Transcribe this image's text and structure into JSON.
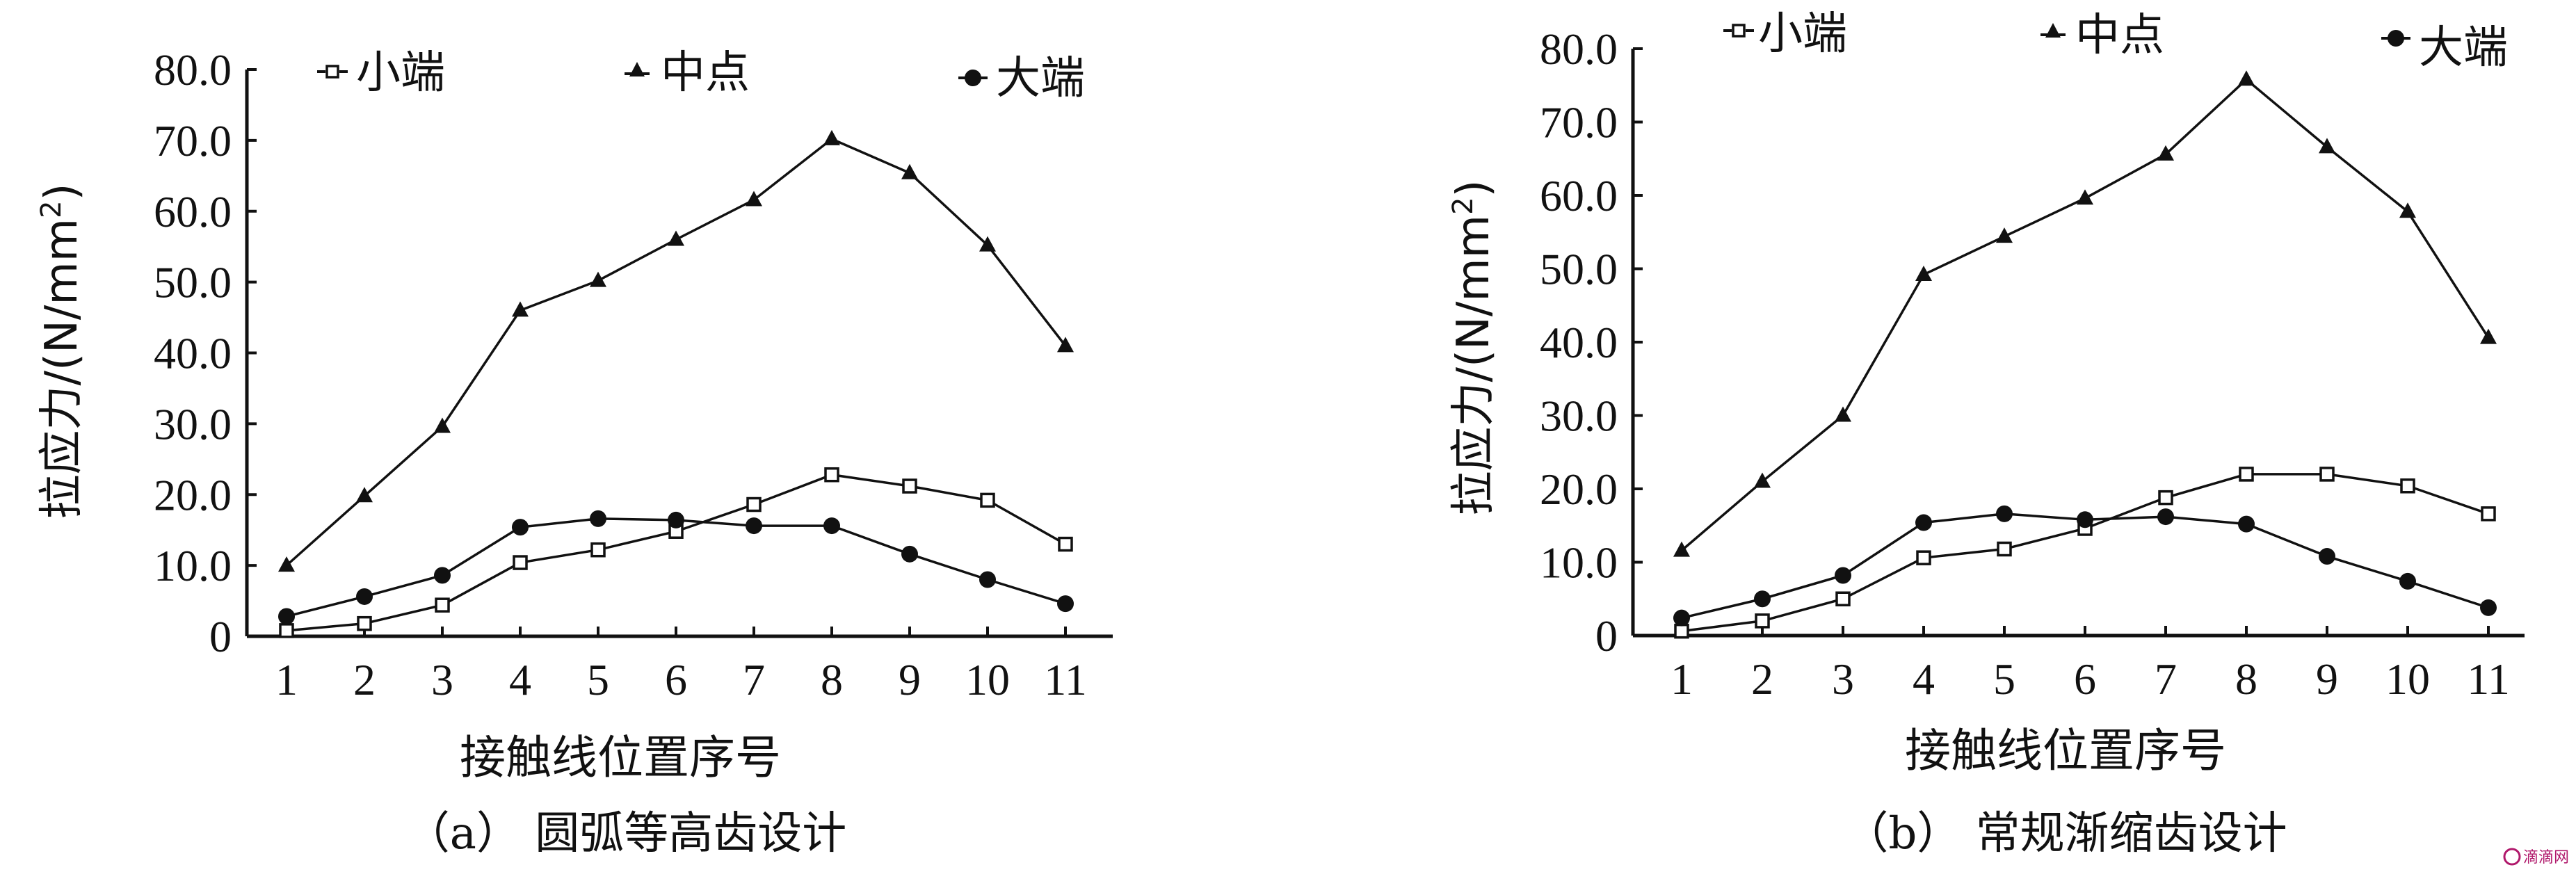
{
  "chart_data": [
    {
      "type": "line",
      "caption": "（a） 圆弧等高齿设计",
      "xlabel": "接触线位置序号",
      "ylabel": "拉应力/(N/mm²)",
      "ylabel_text": "拉应力/(N/mm",
      "ylabel_sup": "2",
      "ylabel_close": ")",
      "ylim": [
        0,
        80
      ],
      "yticks": [
        "0",
        "10.0",
        "20.0",
        "30.0",
        "40.0",
        "50.0",
        "60.0",
        "70.0",
        "80.0"
      ],
      "x": [
        1,
        2,
        3,
        4,
        5,
        6,
        7,
        8,
        9,
        10,
        11
      ],
      "xticks": [
        "1",
        "2",
        "3",
        "4",
        "5",
        "6",
        "7",
        "8",
        "9",
        "10",
        "11"
      ],
      "legend_placement": "top",
      "series": [
        {
          "name": "小端",
          "marker": "square-open",
          "values": [
            0.8,
            1.8,
            4.4,
            10.4,
            12.2,
            14.8,
            18.6,
            22.8,
            21.2,
            19.2,
            13.0
          ]
        },
        {
          "name": "中点",
          "marker": "triangle",
          "values": [
            10.0,
            19.8,
            29.6,
            46.0,
            50.2,
            56.0,
            61.6,
            70.2,
            65.4,
            55.2,
            41.0
          ]
        },
        {
          "name": "大端",
          "marker": "circle-filled",
          "values": [
            2.8,
            5.6,
            8.6,
            15.4,
            16.6,
            16.4,
            15.6,
            15.6,
            11.6,
            8.0,
            4.6
          ]
        }
      ]
    },
    {
      "type": "line",
      "caption": "（b） 常规渐缩齿设计",
      "xlabel": "接触线位置序号",
      "ylabel": "拉应力/(N/mm²)",
      "ylabel_text": "拉应力/(N/mm",
      "ylabel_sup": "2",
      "ylabel_close": ")",
      "ylim": [
        0,
        80
      ],
      "yticks": [
        "0",
        "10.0",
        "20.0",
        "30.0",
        "40.0",
        "50.0",
        "60.0",
        "70.0",
        "80.0"
      ],
      "x": [
        1,
        2,
        3,
        4,
        5,
        6,
        7,
        8,
        9,
        10,
        11
      ],
      "xticks": [
        "1",
        "2",
        "3",
        "4",
        "5",
        "6",
        "7",
        "8",
        "9",
        "10",
        "11"
      ],
      "legend_placement": "top",
      "series": [
        {
          "name": "小端",
          "marker": "square-open",
          "values": [
            0.6,
            2.0,
            5.0,
            10.6,
            11.8,
            14.6,
            18.8,
            22.0,
            22.0,
            20.4,
            16.6
          ]
        },
        {
          "name": "中点",
          "marker": "triangle",
          "values": [
            11.6,
            21.0,
            30.0,
            49.2,
            54.4,
            59.6,
            65.6,
            75.8,
            66.6,
            57.8,
            40.6
          ]
        },
        {
          "name": "大端",
          "marker": "circle-filled",
          "values": [
            2.4,
            5.0,
            8.2,
            15.4,
            16.6,
            15.8,
            16.2,
            15.2,
            10.8,
            7.4,
            3.8
          ]
        }
      ]
    }
  ],
  "watermark": "滴滴网",
  "colors": {
    "ink": "#111111",
    "watermark": "#b0186b"
  }
}
